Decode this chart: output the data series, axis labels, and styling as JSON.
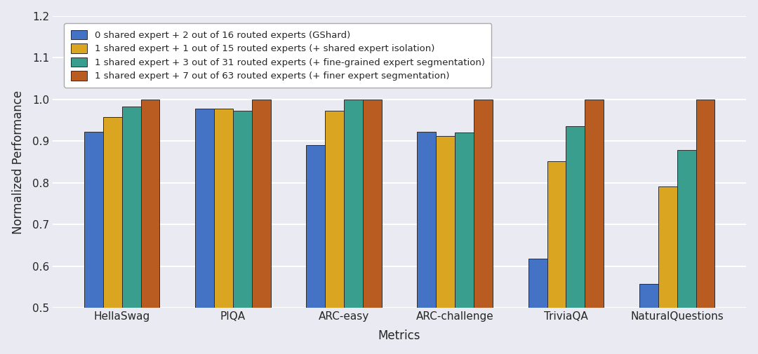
{
  "categories": [
    "HellaSwag",
    "PIQA",
    "ARC-easy",
    "ARC-challenge",
    "TriviaQA",
    "NaturalQuestions"
  ],
  "series": [
    {
      "label": "0 shared expert + 2 out of 16 routed experts (GShard)",
      "color": "#4472C4",
      "values": [
        0.923,
        0.978,
        0.89,
        0.923,
        0.618,
        0.558
      ]
    },
    {
      "label": "1 shared expert + 1 out of 15 routed experts (+ shared expert isolation)",
      "color": "#DAA520",
      "values": [
        0.957,
        0.978,
        0.972,
        0.913,
        0.852,
        0.792
      ]
    },
    {
      "label": "1 shared expert + 3 out of 31 routed experts (+ fine-grained expert segmentation)",
      "color": "#3A9E8E",
      "values": [
        0.983,
        0.972,
        1.0,
        0.92,
        0.935,
        0.878
      ]
    },
    {
      "label": "1 shared expert + 7 out of 63 routed experts (+ finer expert segmentation)",
      "color": "#B85C22",
      "values": [
        1.0,
        1.0,
        1.0,
        1.0,
        1.0,
        1.0
      ]
    }
  ],
  "xlabel": "Metrics",
  "ylabel": "Normalized Performance",
  "ylim": [
    0.5,
    1.2
  ],
  "yticks": [
    0.5,
    0.6,
    0.7,
    0.8,
    0.9,
    1.0,
    1.1,
    1.2
  ],
  "background_color": "#EAEAF2",
  "grid_color": "#FFFFFF",
  "bar_width": 0.17,
  "legend_fontsize": 9.5,
  "axis_label_fontsize": 12,
  "tick_fontsize": 11
}
